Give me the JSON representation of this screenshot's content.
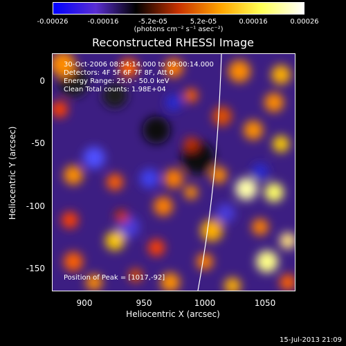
{
  "colorbar": {
    "ticks": [
      "-0.00026",
      "-0.00016",
      "-5.2e-05",
      "5.2e-05",
      "0.00016",
      "0.00026"
    ],
    "units": "(photons cm⁻² s⁻¹ asec⁻²)",
    "colors": [
      "#0000ff",
      "#5a2ed2",
      "#000000",
      "#c83200",
      "#ffa500",
      "#ffff55",
      "#ffffff"
    ]
  },
  "title": "Reconstructed RHESSI Image",
  "axes": {
    "xlabel": "Heliocentric X (arcsec)",
    "ylabel": "Heliocentric Y (arcsec)",
    "xticks": [
      "900",
      "950",
      "1000",
      "1050"
    ],
    "yticks": [
      "0",
      "-50",
      "-100",
      "-150"
    ],
    "xrange": [
      875,
      1067
    ],
    "yrange": [
      -170,
      20
    ]
  },
  "annotations": {
    "time": "30-Oct-2006 08:54:14.000 to 09:00:14.000",
    "detectors": "Detectors: 4F 5F 6F 7F 8F, Att 0",
    "energy": "Energy Range: 25.0 - 50.0 keV",
    "clean": "Clean     Total counts: 1.98E+04",
    "peak": "Position of Peak = [1017,-92]"
  },
  "footer": "15-Jul-2013 21:09"
}
